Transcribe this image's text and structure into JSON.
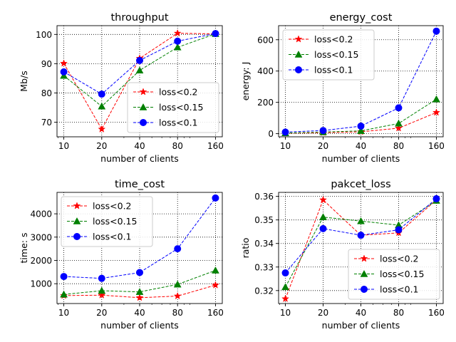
{
  "chart_data": [
    {
      "type": "line",
      "title": "throughput",
      "xlabel": "number of clients",
      "ylabel": "Mb/s",
      "x": [
        10,
        20,
        40,
        80,
        160
      ],
      "x_scale": "log2",
      "ylim": [
        65,
        103
      ],
      "yticks": [
        70,
        80,
        90,
        100
      ],
      "grid": true,
      "legend_position": "lower-right",
      "series": [
        {
          "name": "loss<0.2",
          "color": "#ff0000",
          "marker": "star",
          "values": [
            90.1,
            67.6,
            91.8,
            100.4,
            100.2
          ]
        },
        {
          "name": "loss<0.15",
          "color": "#008000",
          "marker": "triangle",
          "values": [
            85.9,
            75.4,
            87.7,
            95.6,
            100.2
          ]
        },
        {
          "name": "loss<0.1",
          "color": "#0000ff",
          "marker": "circle",
          "values": [
            87.2,
            79.6,
            91.1,
            97.7,
            100.3
          ]
        }
      ]
    },
    {
      "type": "line",
      "title": "energy_cost",
      "xlabel": "number of clients",
      "ylabel": "energy: J",
      "x": [
        10,
        20,
        40,
        80,
        160
      ],
      "x_scale": "log2",
      "ylim": [
        -20,
        690
      ],
      "yticks": [
        0,
        200,
        400,
        600
      ],
      "grid": true,
      "legend_position": "upper-left",
      "series": [
        {
          "name": "loss<0.2",
          "color": "#ff0000",
          "marker": "star",
          "values": [
            3,
            6,
            12,
            35,
            135
          ]
        },
        {
          "name": "loss<0.15",
          "color": "#008000",
          "marker": "triangle",
          "values": [
            4,
            10,
            18,
            65,
            220
          ]
        },
        {
          "name": "loss<0.1",
          "color": "#0000ff",
          "marker": "circle",
          "values": [
            10,
            20,
            48,
            165,
            655
          ]
        }
      ]
    },
    {
      "type": "line",
      "title": "time_cost",
      "xlabel": "number of clients",
      "ylabel": "time: s",
      "x": [
        10,
        20,
        40,
        80,
        160
      ],
      "x_scale": "log2",
      "ylim": [
        150,
        4920
      ],
      "yticks": [
        1000,
        2000,
        3000,
        4000
      ],
      "grid": true,
      "legend_position": "upper-left",
      "series": [
        {
          "name": "loss<0.2",
          "color": "#ff0000",
          "marker": "star",
          "values": [
            490,
            510,
            400,
            470,
            940
          ]
        },
        {
          "name": "loss<0.15",
          "color": "#008000",
          "marker": "triangle",
          "values": [
            540,
            700,
            650,
            970,
            1570
          ]
        },
        {
          "name": "loss<0.1",
          "color": "#0000ff",
          "marker": "circle",
          "values": [
            1310,
            1230,
            1480,
            2500,
            4680
          ]
        }
      ]
    },
    {
      "type": "line",
      "title": "pakcet_loss",
      "xlabel": "number of clients",
      "ylabel": "ratio",
      "x": [
        10,
        20,
        40,
        80,
        160
      ],
      "x_scale": "log2",
      "ylim": [
        0.3145,
        0.3617
      ],
      "yticks": [
        0.32,
        0.33,
        0.34,
        0.35,
        0.36
      ],
      "grid": true,
      "legend_position": "lower-right",
      "series": [
        {
          "name": "loss<0.2",
          "color": "#ff0000",
          "marker": "star",
          "values": [
            0.3165,
            0.3585,
            0.3435,
            0.3445,
            0.3585
          ]
        },
        {
          "name": "loss<0.15",
          "color": "#008000",
          "marker": "triangle",
          "values": [
            0.3215,
            0.3512,
            0.3495,
            0.3478,
            0.3582
          ]
        },
        {
          "name": "loss<0.1",
          "color": "#0000ff",
          "marker": "circle",
          "values": [
            0.3275,
            0.3463,
            0.3435,
            0.3458,
            0.359
          ]
        }
      ]
    }
  ]
}
